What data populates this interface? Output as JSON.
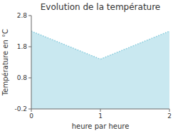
{
  "chart_data": {
    "type": "area",
    "title": "Evolution de la température",
    "xlabel": "heure par heure",
    "ylabel": "Température en °C",
    "x": [
      0,
      1,
      2
    ],
    "values": [
      2.3,
      1.4,
      2.3
    ],
    "xlim": [
      0,
      2
    ],
    "ylim": [
      -0.2,
      2.8
    ],
    "xticks": [
      0,
      1,
      2
    ],
    "yticks": [
      -0.2,
      0.8,
      1.8,
      2.8
    ],
    "color": "#88ccdd",
    "line_style": "dotted",
    "grid": false
  }
}
